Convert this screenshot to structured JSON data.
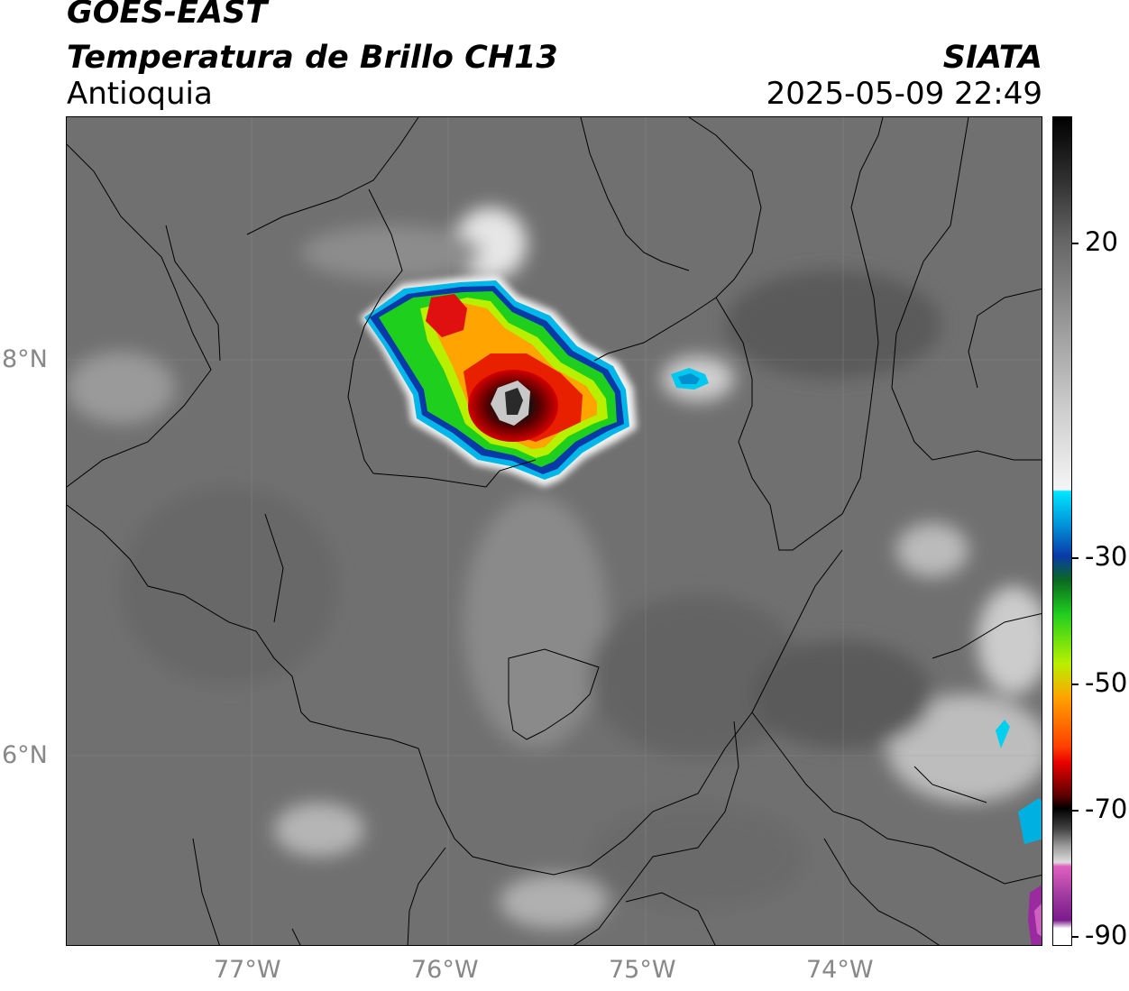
{
  "header": {
    "satellite": "GOES-EAST",
    "product": "Temperatura de Brillo CH13",
    "region": "Antioquia",
    "organization": "SIATA",
    "datetime": "2025-05-09 22:49"
  },
  "map": {
    "lat_labels": [
      "8°N",
      "6°N"
    ],
    "lon_labels": [
      "77°W",
      "76°W",
      "75°W",
      "74°W"
    ]
  },
  "colorbar": {
    "ticks": [
      "20",
      "-30",
      "-50",
      "-70",
      "-90"
    ],
    "colors": {
      "warm": "#5a5a5a",
      "white": "#f2f2f2",
      "cyan": "#00e5ff",
      "blue": "#002b8c",
      "green": "#1ed11e",
      "yellow": "#e6ff00",
      "orange": "#ff9a00",
      "red": "#e80000",
      "dark_red": "#5a0000",
      "black": "#000000",
      "pink": "#e060c0",
      "purple": "#7a1a8c"
    }
  }
}
